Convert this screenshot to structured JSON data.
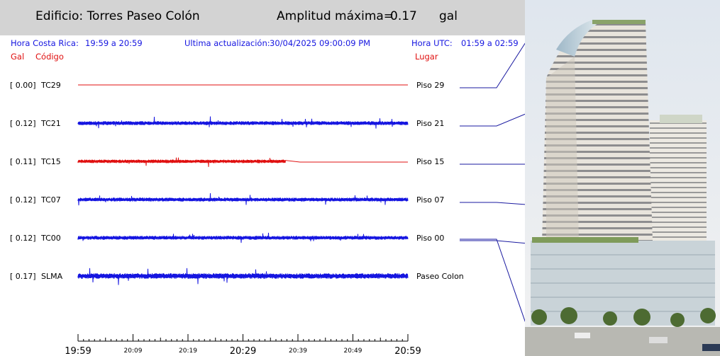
{
  "header": {
    "building": "Edificio: Torres Paseo Colón",
    "amplitude_label": "Amplitud máxima=",
    "amplitude_value": "0.17",
    "amplitude_unit": "gal"
  },
  "info": {
    "local_label": "Hora Costa Rica:",
    "local_range": "19:59 a 20:59",
    "update_label": "Ultima actualización:",
    "update_value": "30/04/2025 09:00:09 PM",
    "utc_label": "Hora UTC:",
    "utc_range": "01:59 a 02:59"
  },
  "columns": {
    "gal": "Gal",
    "code": "Código",
    "place": "Lugar"
  },
  "colors": {
    "header_bg": "#d3d3d3",
    "blue": "#1515e0",
    "red": "#e01010",
    "sky": "#e9eef3"
  },
  "chart_data": {
    "type": "line",
    "x_ticks_major": [
      "19:59",
      "20:29",
      "20:59"
    ],
    "x_ticks_minor": [
      "20:09",
      "20:19",
      "20:39",
      "20:49"
    ],
    "series": [
      {
        "name": "TC29",
        "gal": "[   0.00]",
        "place": "Piso 29",
        "color": "#e01010",
        "amplitude": 0.0,
        "active_until": 0.0,
        "cut_offset": 0
      },
      {
        "name": "TC21",
        "gal": "[   0.12]",
        "place": "Piso 21",
        "color": "#1515e0",
        "amplitude": 0.12,
        "active_until": 1.0,
        "cut_offset": 0
      },
      {
        "name": "TC15",
        "gal": "[   0.11]",
        "place": "Piso 15",
        "color": "#e01010",
        "amplitude": 0.11,
        "active_until": 0.63,
        "cut_offset": 1
      },
      {
        "name": "TC07",
        "gal": "[   0.12]",
        "place": "Piso 07",
        "color": "#1515e0",
        "amplitude": 0.12,
        "active_until": 1.0,
        "cut_offset": 0
      },
      {
        "name": "TC00",
        "gal": "[   0.12]",
        "place": "Piso 00",
        "color": "#1515e0",
        "amplitude": 0.12,
        "active_until": 1.0,
        "cut_offset": 0
      },
      {
        "name": "SLMA",
        "gal": "[   0.17]",
        "place": "Paseo Colon",
        "color": "#1515e0",
        "amplitude": 0.17,
        "active_until": 1.0,
        "cut_offset": 0
      }
    ]
  },
  "photo": {
    "icon": "building-photo"
  }
}
